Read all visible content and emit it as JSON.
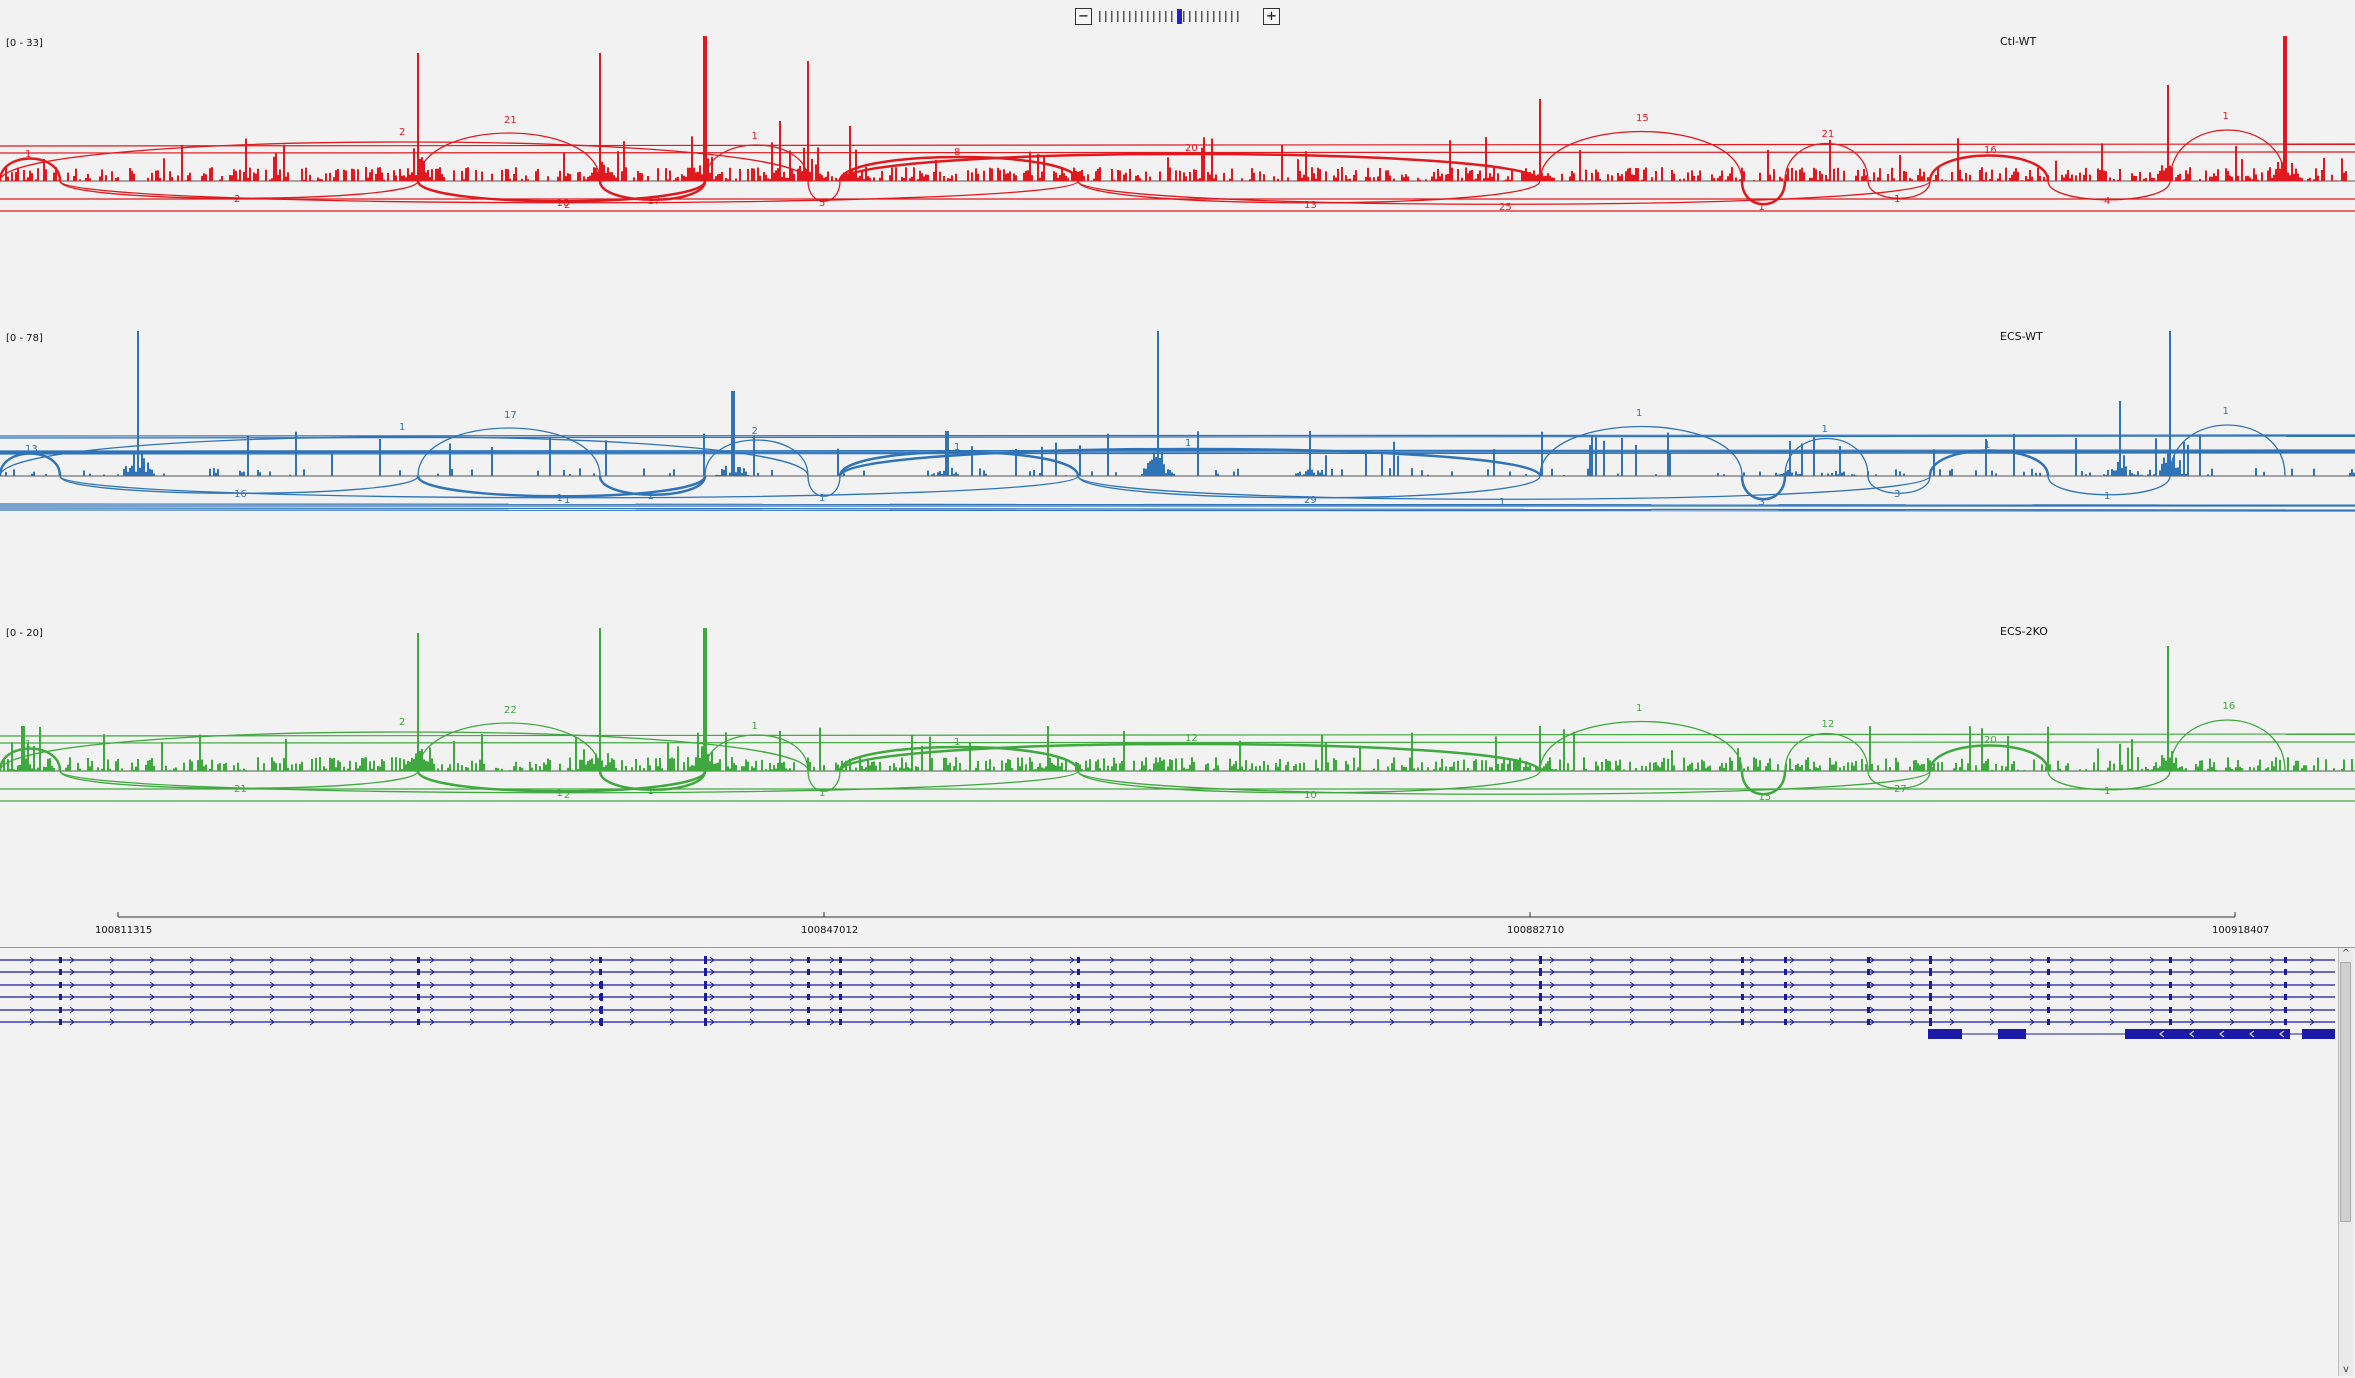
{
  "zoom": {
    "minus": "−",
    "plus": "+",
    "levels": 24,
    "current": 13
  },
  "tracks": [
    {
      "name": "Ctl-WT",
      "range": "[0 - 33]",
      "color": "#e0191e",
      "key": "ctl",
      "junction_labels": [
        "1",
        "2",
        "21",
        "17",
        "1",
        "5",
        "8",
        "13",
        "15",
        "1",
        "21",
        "1",
        "16",
        "4",
        "1",
        "10",
        "2",
        "2",
        "20",
        "25",
        "27",
        "29"
      ]
    },
    {
      "name": "ECS-WT",
      "range": "[0 - 78]",
      "color": "#2f73b8",
      "key": "ecs",
      "junction_labels": [
        "13",
        "16",
        "17",
        "1",
        "2",
        "1",
        "1",
        "29",
        "1",
        "3",
        "1",
        "3",
        "1",
        "1",
        "1",
        "1",
        "1",
        "1",
        "1",
        "1",
        "1"
      ]
    },
    {
      "name": "ECS-2KO",
      "range": "[0 - 20]",
      "color": "#3fa83f",
      "key": "ko",
      "junction_labels": [
        "1",
        "21",
        "22",
        "1",
        "1",
        "1",
        "1",
        "10",
        "1",
        "15",
        "12",
        "27",
        "20",
        "1",
        "16",
        "1",
        "2",
        "2",
        "12"
      ]
    }
  ],
  "ruler": {
    "ticks": [
      "100811315",
      "100847012",
      "100882710",
      "100918407"
    ]
  },
  "colors": {
    "gene": "#1a1aa6",
    "axis": "#333333",
    "panel_bg": "#f2f2f2"
  },
  "scroll": {
    "up": "^",
    "down": "v"
  }
}
